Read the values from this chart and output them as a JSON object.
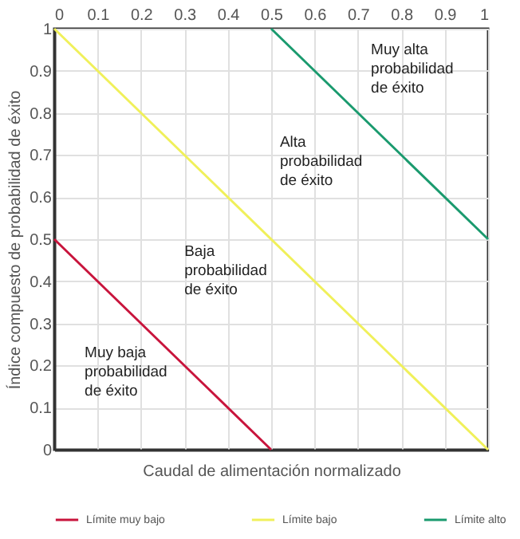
{
  "chart_data": {
    "type": "line",
    "xlabel": "Caudal de alimentación normalizado",
    "ylabel": "Índice compuesto de probabilidad de éxito",
    "series": [
      {
        "name": "Límite muy bajo",
        "color": "#c8143c",
        "x": [
          0,
          0.5
        ],
        "values": [
          0.5,
          0
        ]
      },
      {
        "name": "Límite bajo",
        "color": "#f0f05a",
        "x": [
          0,
          1
        ],
        "values": [
          1,
          0
        ]
      },
      {
        "name": "Límite alto",
        "color": "#1a9a6e",
        "x": [
          0.5,
          1
        ],
        "values": [
          1,
          0.5
        ]
      }
    ],
    "xlim": [
      0,
      1
    ],
    "xticks": [
      0,
      0.1,
      0.2,
      0.3,
      0.4,
      0.5,
      0.6,
      0.7,
      0.8,
      0.9,
      1
    ],
    "ylim": [
      0,
      1
    ],
    "yticks": [
      0,
      0.1,
      0.2,
      0.3,
      0.4,
      0.5,
      0.6,
      0.7,
      0.8,
      0.9,
      1
    ],
    "grid": true,
    "legend": "bottom",
    "marker": "none",
    "line_style": "solid",
    "annotations": [
      "Muy alta\nprobabilidad\nde éxito",
      "Alta\nprobabilidad\nde éxito",
      "Baja\nprobabilidad\nde éxito",
      "Muy baja\nprobabilidad\nde éxito"
    ]
  }
}
